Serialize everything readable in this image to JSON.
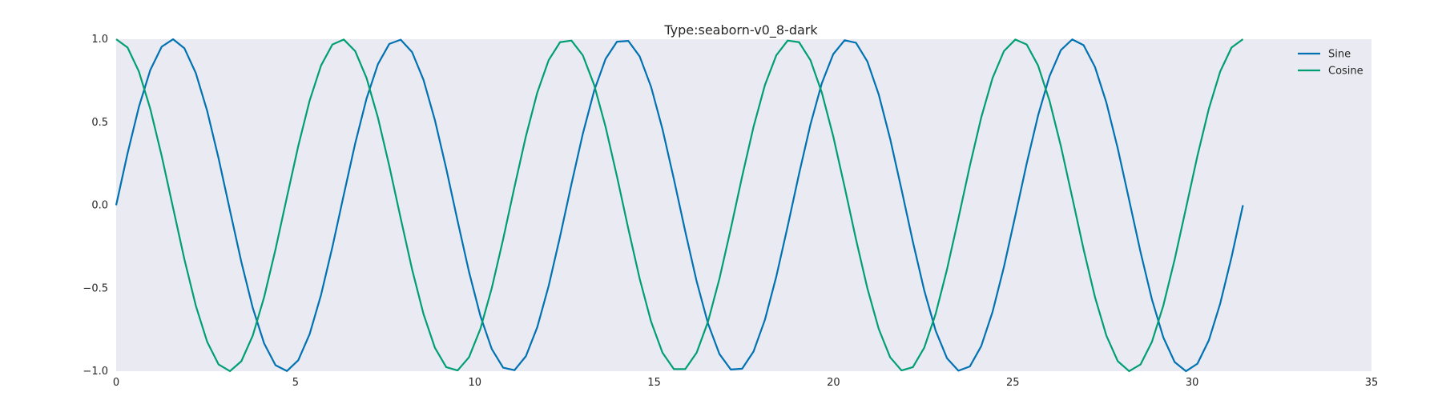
{
  "chart_data": {
    "type": "line",
    "title": "Type:seaborn-v0_8-dark",
    "xlabel": "",
    "ylabel": "",
    "xlim": [
      0,
      35
    ],
    "ylim": [
      -1.0,
      1.0
    ],
    "x_ticks": [
      0,
      5,
      10,
      15,
      20,
      25,
      30,
      35
    ],
    "y_ticks": [
      -1.0,
      -0.5,
      0.0,
      0.5,
      1.0
    ],
    "x_tick_labels": [
      "0",
      "5",
      "10",
      "15",
      "20",
      "25",
      "30",
      "35"
    ],
    "y_tick_labels": [
      "−1.0",
      "−0.5",
      "0.0",
      "0.5",
      "1.0"
    ],
    "x_range": [
      0,
      31.4159
    ],
    "num_points": 100,
    "grid": false,
    "legend_position": "top-right",
    "background_color": "#EAEAF2",
    "series": [
      {
        "name": "Sine",
        "function": "sin",
        "color": "#0072B2"
      },
      {
        "name": "Cosine",
        "function": "cos",
        "color": "#009E73"
      }
    ]
  }
}
